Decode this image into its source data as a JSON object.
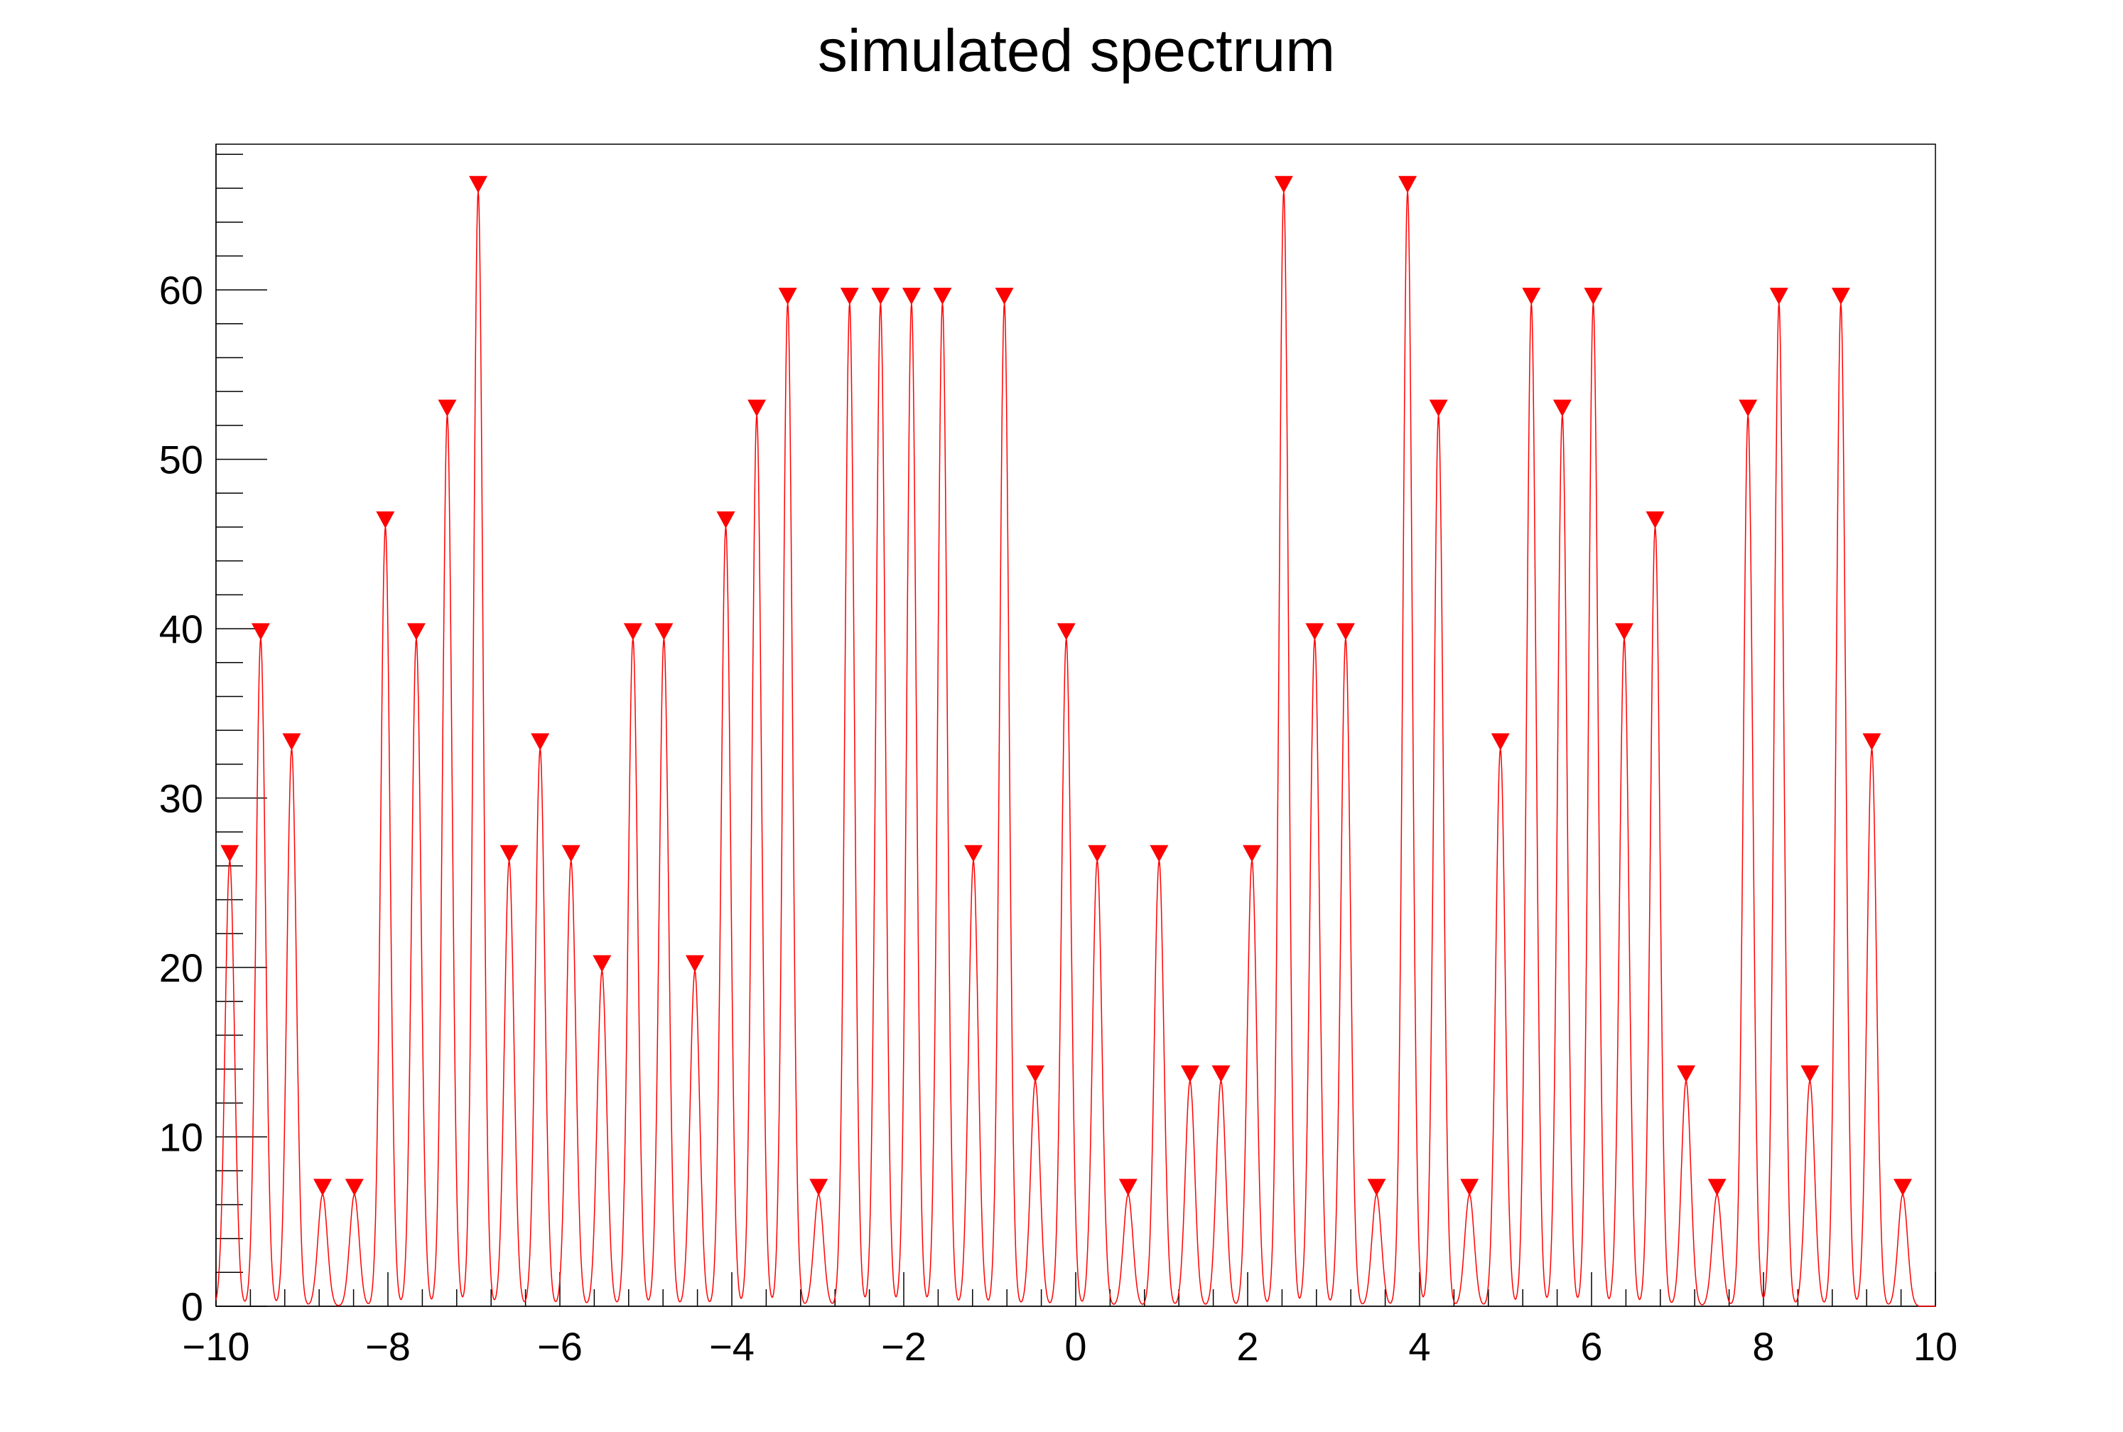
{
  "chart_data": {
    "type": "line",
    "title": "simulated spectrum",
    "xlabel": "",
    "ylabel": "",
    "xlim": [
      -10,
      10
    ],
    "ylim": [
      0,
      68.6
    ],
    "x_ticks": [
      -10,
      -8,
      -6,
      -4,
      -2,
      0,
      2,
      4,
      6,
      8,
      10
    ],
    "x_tick_labels": [
      "−10",
      "−8",
      "−6",
      "−4",
      "−2",
      "0",
      "2",
      "4",
      "6",
      "8",
      "10"
    ],
    "y_ticks": [
      0,
      10,
      20,
      30,
      40,
      50,
      60
    ],
    "y_tick_labels": [
      "0",
      "10",
      "20",
      "30",
      "40",
      "50",
      "60"
    ],
    "grid": false,
    "colors": {
      "curve": "#ff0000",
      "markers": "#ff0000"
    },
    "series": [
      {
        "marker": "triangle-down",
        "peaks": [
          {
            "x": -9.84,
            "y": 26.3
          },
          {
            "x": -9.48,
            "y": 39.4
          },
          {
            "x": -9.12,
            "y": 32.9
          },
          {
            "x": -8.76,
            "y": 6.6
          },
          {
            "x": -8.39,
            "y": 6.6
          },
          {
            "x": -8.03,
            "y": 46.0
          },
          {
            "x": -7.67,
            "y": 39.4
          },
          {
            "x": -7.31,
            "y": 52.6
          },
          {
            "x": -6.95,
            "y": 65.8
          },
          {
            "x": -6.59,
            "y": 26.3
          },
          {
            "x": -6.23,
            "y": 32.9
          },
          {
            "x": -5.87,
            "y": 26.3
          },
          {
            "x": -5.51,
            "y": 19.8
          },
          {
            "x": -5.15,
            "y": 39.4
          },
          {
            "x": -4.79,
            "y": 39.4
          },
          {
            "x": -4.43,
            "y": 19.8
          },
          {
            "x": -4.07,
            "y": 46.0
          },
          {
            "x": -3.71,
            "y": 52.6
          },
          {
            "x": -3.35,
            "y": 59.2
          },
          {
            "x": -2.99,
            "y": 6.6
          },
          {
            "x": -2.63,
            "y": 59.2
          },
          {
            "x": -2.27,
            "y": 59.2
          },
          {
            "x": -1.91,
            "y": 59.2
          },
          {
            "x": -1.55,
            "y": 59.2
          },
          {
            "x": -1.19,
            "y": 26.3
          },
          {
            "x": -0.83,
            "y": 59.2
          },
          {
            "x": -0.47,
            "y": 13.3
          },
          {
            "x": -0.11,
            "y": 39.4
          },
          {
            "x": 0.25,
            "y": 26.3
          },
          {
            "x": 0.61,
            "y": 6.6
          },
          {
            "x": 0.97,
            "y": 26.3
          },
          {
            "x": 1.33,
            "y": 13.3
          },
          {
            "x": 1.69,
            "y": 13.3
          },
          {
            "x": 2.05,
            "y": 26.3
          },
          {
            "x": 2.42,
            "y": 65.8
          },
          {
            "x": 2.78,
            "y": 39.4
          },
          {
            "x": 3.14,
            "y": 39.4
          },
          {
            "x": 3.5,
            "y": 6.6
          },
          {
            "x": 3.86,
            "y": 65.8
          },
          {
            "x": 4.22,
            "y": 52.6
          },
          {
            "x": 4.58,
            "y": 6.6
          },
          {
            "x": 4.94,
            "y": 32.9
          },
          {
            "x": 5.3,
            "y": 59.2
          },
          {
            "x": 5.66,
            "y": 52.6
          },
          {
            "x": 6.02,
            "y": 59.2
          },
          {
            "x": 6.38,
            "y": 39.4
          },
          {
            "x": 6.74,
            "y": 46.0
          },
          {
            "x": 7.1,
            "y": 13.3
          },
          {
            "x": 7.46,
            "y": 6.6
          },
          {
            "x": 7.82,
            "y": 52.6
          },
          {
            "x": 8.18,
            "y": 59.2
          },
          {
            "x": 8.54,
            "y": 13.3
          },
          {
            "x": 8.9,
            "y": 59.2
          },
          {
            "x": 9.26,
            "y": 32.9
          },
          {
            "x": 9.62,
            "y": 6.6
          }
        ]
      }
    ]
  }
}
